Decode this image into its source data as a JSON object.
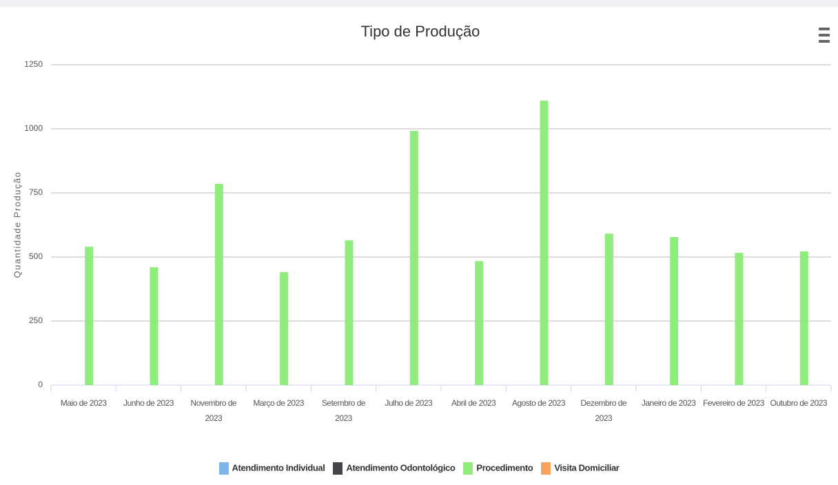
{
  "chart_data": {
    "type": "bar",
    "title": "Tipo de Produção",
    "y_label": "Quantidade Produção",
    "categories": [
      "Maio de 2023",
      "Junho de 2023",
      "Novembro de 2023",
      "Março de 2023",
      "Setembro de 2023",
      "Julho de 2023",
      "Abril de 2023",
      "Agosto de 2023",
      "Dezembro de 2023",
      "Janeiro de 2023",
      "Fevereiro de 2023",
      "Outubro de 2023"
    ],
    "series": [
      {
        "name": "Atendimento Individual",
        "color": "#7cb5ec",
        "values": [
          0,
          0,
          0,
          0,
          0,
          0,
          0,
          0,
          0,
          0,
          0,
          0
        ]
      },
      {
        "name": "Atendimento Odontológico",
        "color": "#434348",
        "values": [
          0,
          0,
          0,
          0,
          0,
          0,
          0,
          0,
          0,
          0,
          0,
          0
        ]
      },
      {
        "name": "Procedimento",
        "color": "#90ed7d",
        "values": [
          540,
          460,
          785,
          441,
          565,
          992,
          484,
          1110,
          591,
          578,
          516,
          522
        ]
      },
      {
        "name": "Visita Domiciliar",
        "color": "#f7a35c",
        "values": [
          0,
          0,
          0,
          0,
          0,
          0,
          0,
          0,
          0,
          0,
          0,
          0
        ]
      }
    ],
    "ylim": [
      0,
      1250
    ],
    "yticks": [
      0,
      250,
      500,
      750,
      1000,
      1250
    ],
    "grid": true,
    "legend": "bottom"
  }
}
